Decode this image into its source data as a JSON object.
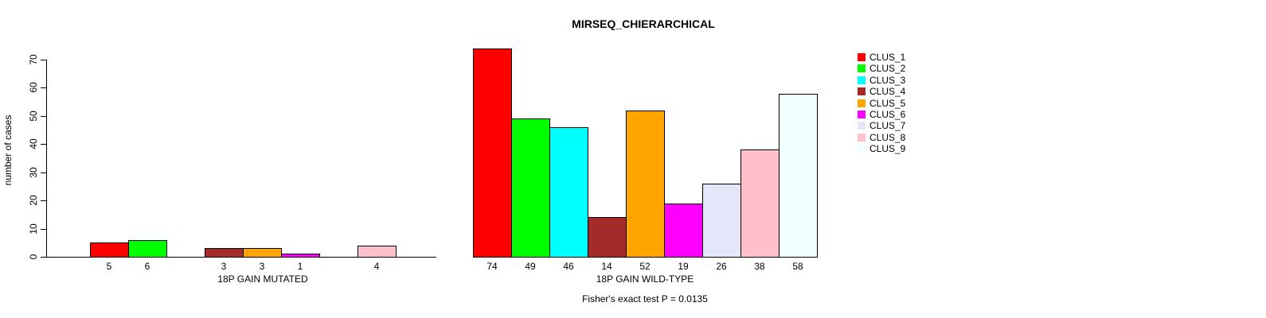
{
  "chart_data": {
    "type": "bar",
    "title": "MIRSEQ_CHIERARCHICAL",
    "ylabel": "number of cases",
    "ylim": [
      0,
      70
    ],
    "yticks": [
      0,
      10,
      20,
      30,
      40,
      50,
      60,
      70
    ],
    "grid": false,
    "bar_border_color": "#000000",
    "show_zero_bars": false,
    "value_labels_position": "below-bars",
    "legend_position": "right-outside",
    "groups": [
      {
        "label": "18P GAIN MUTATED"
      },
      {
        "label": "18P GAIN WILD-TYPE"
      }
    ],
    "series": [
      {
        "name": "CLUS_1",
        "color": "#FF0000",
        "values": [
          5,
          74
        ]
      },
      {
        "name": "CLUS_2",
        "color": "#00FF00",
        "values": [
          6,
          49
        ]
      },
      {
        "name": "CLUS_3",
        "color": "#00FFFF",
        "values": [
          0,
          46
        ]
      },
      {
        "name": "CLUS_4",
        "color": "#A52A2A",
        "values": [
          3,
          14
        ]
      },
      {
        "name": "CLUS_5",
        "color": "#FFA500",
        "values": [
          3,
          52
        ]
      },
      {
        "name": "CLUS_6",
        "color": "#FF00FF",
        "values": [
          1,
          19
        ]
      },
      {
        "name": "CLUS_7",
        "color": "#E6E6FA",
        "values": [
          0,
          26
        ]
      },
      {
        "name": "CLUS_8",
        "color": "#FFC0CB",
        "values": [
          4,
          38
        ]
      },
      {
        "name": "CLUS_9",
        "color": "#F0FFFF",
        "values": [
          0,
          58
        ]
      }
    ],
    "annotation": "Fisher's exact test P = 0.0135"
  }
}
